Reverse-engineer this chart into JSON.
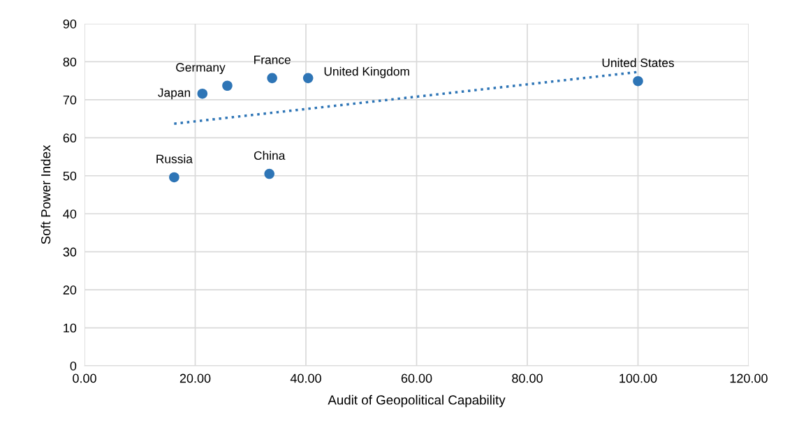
{
  "chart_data": {
    "type": "scatter",
    "xlabel": "Audit of Geopolitical Capability",
    "ylabel": "Soft Power Index",
    "series": [
      {
        "color": "#2e75b6",
        "x": [
          16.2,
          33.4,
          21.3,
          25.8,
          33.9,
          40.4,
          100
        ],
        "values": [
          49.6,
          50.5,
          71.6,
          73.7,
          75.7,
          75.7,
          74.9
        ],
        "marker": "circle"
      },
      {
        "type": "line",
        "color": "#2e75b6",
        "x": [
          16.2,
          100
        ],
        "values": [
          63.7,
          77.3
        ],
        "line_style": "dotted",
        "marker": "none"
      }
    ],
    "annotations": [
      {
        "text": "Russia",
        "x": 16.2,
        "y": 49.6
      },
      {
        "text": "China",
        "x": 33.4,
        "y": 50.5
      },
      {
        "text": "Japan",
        "x": 21.3,
        "y": 71.6
      },
      {
        "text": "Germany",
        "x": 25.8,
        "y": 73.7
      },
      {
        "text": "France",
        "x": 33.9,
        "y": 75.7
      },
      {
        "text": "United Kingdom",
        "x": 40.4,
        "y": 75.7
      },
      {
        "text": "United States",
        "x": 100,
        "y": 74.9
      }
    ],
    "xlim": [
      0,
      120
    ],
    "xticks": [
      {
        "value": 0,
        "label": "0.00"
      },
      {
        "value": 20,
        "label": "20.00"
      },
      {
        "value": 40,
        "label": "40.00"
      },
      {
        "value": 60,
        "label": "60.00"
      },
      {
        "value": 80,
        "label": "80.00"
      },
      {
        "value": 100,
        "label": "100.00"
      },
      {
        "value": 120,
        "label": "120.00"
      }
    ],
    "ylim": [
      0,
      90
    ],
    "yticks": [
      0,
      10,
      20,
      30,
      40,
      50,
      60,
      70,
      80,
      90
    ],
    "grid": true
  }
}
